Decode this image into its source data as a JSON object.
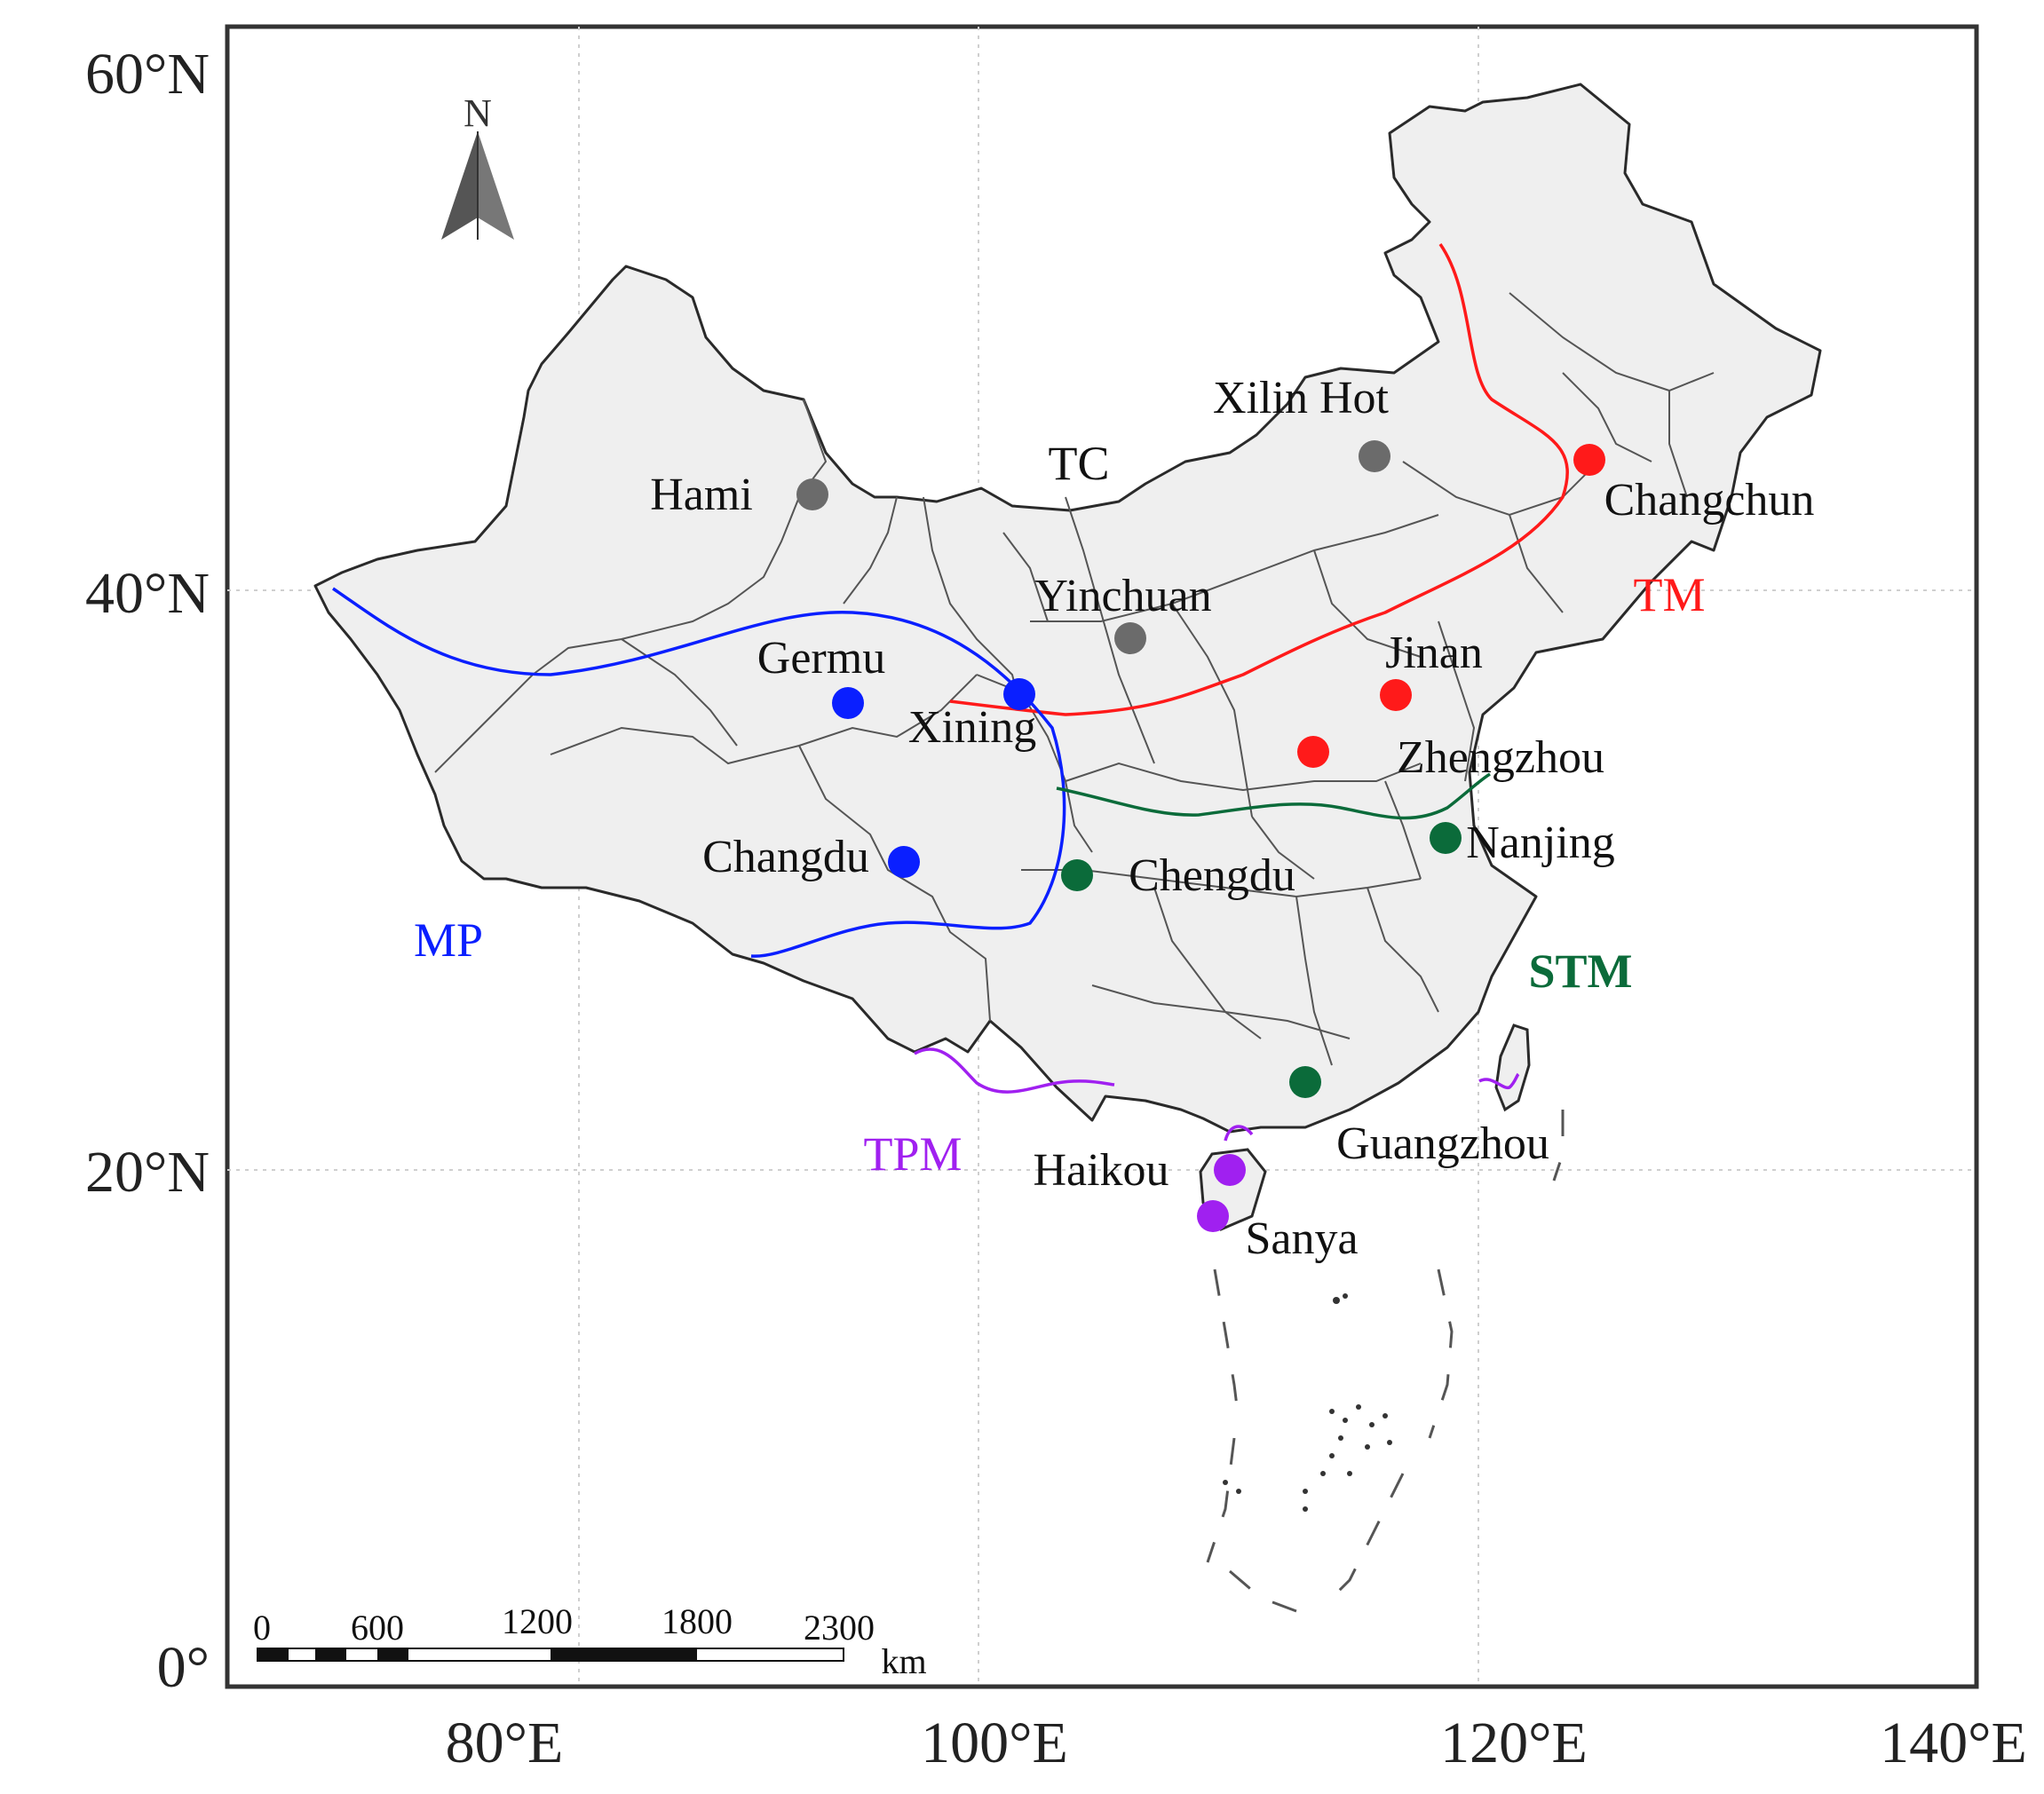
{
  "map": {
    "axes": {
      "lat_labels": [
        "60°N",
        "40°N",
        "20°N",
        "0°"
      ],
      "lon_labels": [
        "80°E",
        "100°E",
        "120°E",
        "140°E"
      ]
    },
    "north_arrow": {
      "label": "N",
      "icon": "north-arrow-icon"
    },
    "zones": [
      {
        "id": "TC",
        "label": "TC",
        "color": "#111111"
      },
      {
        "id": "TM",
        "label": "TM",
        "color": "#ff1a1a"
      },
      {
        "id": "MP",
        "label": "MP",
        "color": "#0a1fff"
      },
      {
        "id": "STM",
        "label": "STM",
        "color": "#0b6b3a"
      },
      {
        "id": "TPM",
        "label": "TPM",
        "color": "#a020f0"
      }
    ],
    "cities": [
      {
        "name": "Hami",
        "zone": "TC",
        "lon": 93.5,
        "lat": 42.8
      },
      {
        "name": "Xilin Hot",
        "zone": "TC",
        "lon": 116.1,
        "lat": 43.9
      },
      {
        "name": "Yinchuan",
        "zone": "TC",
        "lon": 106.2,
        "lat": 38.5
      },
      {
        "name": "Changchun",
        "zone": "TM",
        "lon": 125.3,
        "lat": 43.9
      },
      {
        "name": "Jinan",
        "zone": "TM",
        "lon": 117.0,
        "lat": 36.7
      },
      {
        "name": "Zhengzhou",
        "zone": "TM",
        "lon": 113.7,
        "lat": 34.8
      },
      {
        "name": "Germu",
        "zone": "MP",
        "lon": 94.9,
        "lat": 36.4
      },
      {
        "name": "Xining",
        "zone": "MP",
        "lon": 101.8,
        "lat": 36.6
      },
      {
        "name": "Changdu",
        "zone": "MP",
        "lon": 97.2,
        "lat": 31.1
      },
      {
        "name": "Chengdu",
        "zone": "STM",
        "lon": 104.1,
        "lat": 30.7
      },
      {
        "name": "Nanjing",
        "zone": "STM",
        "lon": 118.8,
        "lat": 32.1
      },
      {
        "name": "Guangzhou",
        "zone": "STM",
        "lon": 113.3,
        "lat": 23.1
      },
      {
        "name": "Haikou",
        "zone": "TPM",
        "lon": 110.3,
        "lat": 20.0
      },
      {
        "name": "Sanya",
        "zone": "TPM",
        "lon": 109.5,
        "lat": 18.3
      }
    ],
    "scale_bar": {
      "ticks": [
        "0",
        "600",
        "1200",
        "1800",
        "2300"
      ],
      "unit": "km"
    }
  }
}
